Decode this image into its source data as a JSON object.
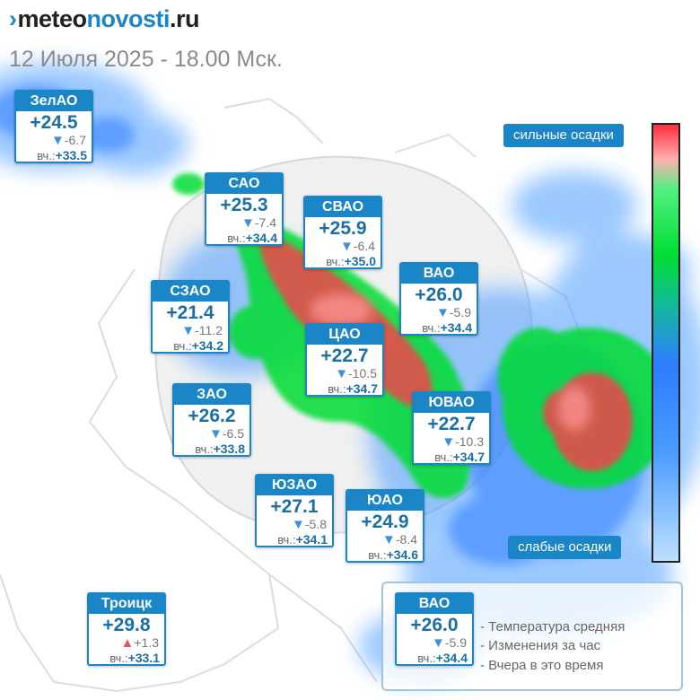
{
  "header": {
    "logo_mark": "›",
    "logo_meteo": "meteo",
    "logo_novosti": "novosti",
    "logo_ru": ".ru",
    "subtitle": "12 Июля 2025 - 18.00 Мск."
  },
  "colors": {
    "accent": "#1a86c8",
    "temp_text": "#1a6fa5",
    "drop_arrow": "#3d8fd6",
    "rise_arrow": "#e05a5a",
    "heavy_precip": "#ff2f3f",
    "medium_precip": "#00dd33",
    "light_precip": "#2f7cff"
  },
  "yesterday_label": "вч.:",
  "districts": [
    {
      "id": "zelao",
      "name": "ЗелАО",
      "temp": "+24.5",
      "delta": "-6.7",
      "dir": "down",
      "yesterday": "+33.5"
    },
    {
      "id": "sao",
      "name": "САО",
      "temp": "+25.3",
      "delta": "-7.4",
      "dir": "down",
      "yesterday": "+34.4"
    },
    {
      "id": "svao",
      "name": "СВАО",
      "temp": "+25.9",
      "delta": "-6.4",
      "dir": "down",
      "yesterday": "+35.0"
    },
    {
      "id": "vao",
      "name": "ВАО",
      "temp": "+26.0",
      "delta": "-5.9",
      "dir": "down",
      "yesterday": "+34.4"
    },
    {
      "id": "szao",
      "name": "СЗАО",
      "temp": "+21.4",
      "delta": "-11.2",
      "dir": "down",
      "yesterday": "+34.2"
    },
    {
      "id": "cao",
      "name": "ЦАО",
      "temp": "+22.7",
      "delta": "-10.5",
      "dir": "down",
      "yesterday": "+34.7"
    },
    {
      "id": "zao",
      "name": "ЗАО",
      "temp": "+26.2",
      "delta": "-6.5",
      "dir": "down",
      "yesterday": "+33.8"
    },
    {
      "id": "yuvao",
      "name": "ЮВАО",
      "temp": "+22.7",
      "delta": "-10.3",
      "dir": "down",
      "yesterday": "+34.7"
    },
    {
      "id": "yuzao",
      "name": "ЮЗАО",
      "temp": "+27.1",
      "delta": "-5.8",
      "dir": "down",
      "yesterday": "+34.1"
    },
    {
      "id": "yuao",
      "name": "ЮАО",
      "temp": "+24.9",
      "delta": "-8.4",
      "dir": "down",
      "yesterday": "+34.6"
    },
    {
      "id": "troick",
      "name": "Троицк",
      "temp": "+29.8",
      "delta": "+1.3",
      "dir": "up",
      "yesterday": "+33.1"
    }
  ],
  "scale": {
    "top_label": "сильные осадки",
    "bottom_label": "слабые осадки"
  },
  "legend": {
    "example": {
      "name": "ВАО",
      "temp": "+26.0",
      "delta": "-5.9",
      "dir": "down",
      "yesterday": "+34.4"
    },
    "line1": "- Температура средняя",
    "line2": "- Изменения за час",
    "line3": "- Вчера в это время"
  }
}
